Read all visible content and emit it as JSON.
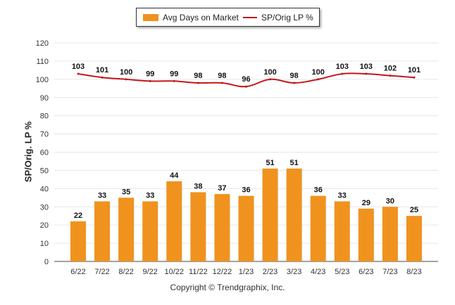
{
  "legend": {
    "bar_label": "Avg Days on Market",
    "line_label": "SP/Orig LP %"
  },
  "footer": {
    "copyright": "Copyright © Trendgraphix, Inc."
  },
  "colors": {
    "bar": "#F0921E",
    "line": "#C4161C",
    "grid": "#E6E6E6",
    "axis": "#444444"
  },
  "chart_data": {
    "type": "bar",
    "categories": [
      "6/22",
      "7/22",
      "8/22",
      "9/22",
      "10/22",
      "11/22",
      "12/22",
      "1/23",
      "2/23",
      "3/23",
      "4/23",
      "5/23",
      "6/23",
      "7/23",
      "8/23"
    ],
    "series": [
      {
        "name": "Avg Days on Market",
        "type": "bar",
        "values": [
          22,
          33,
          35,
          33,
          44,
          38,
          37,
          36,
          51,
          51,
          36,
          33,
          29,
          30,
          25
        ]
      },
      {
        "name": "SP/Orig LP %",
        "type": "line",
        "values": [
          103,
          101,
          100,
          99,
          99,
          98,
          98,
          96,
          100,
          98,
          100,
          103,
          103,
          102,
          101
        ]
      }
    ],
    "ylabel": "SP/Orig. LP %",
    "ylim": [
      0,
      120
    ],
    "yticks": [
      0,
      10,
      20,
      30,
      40,
      50,
      60,
      70,
      80,
      90,
      100,
      110,
      120
    ],
    "grid": true,
    "legend_position": "top-center"
  }
}
